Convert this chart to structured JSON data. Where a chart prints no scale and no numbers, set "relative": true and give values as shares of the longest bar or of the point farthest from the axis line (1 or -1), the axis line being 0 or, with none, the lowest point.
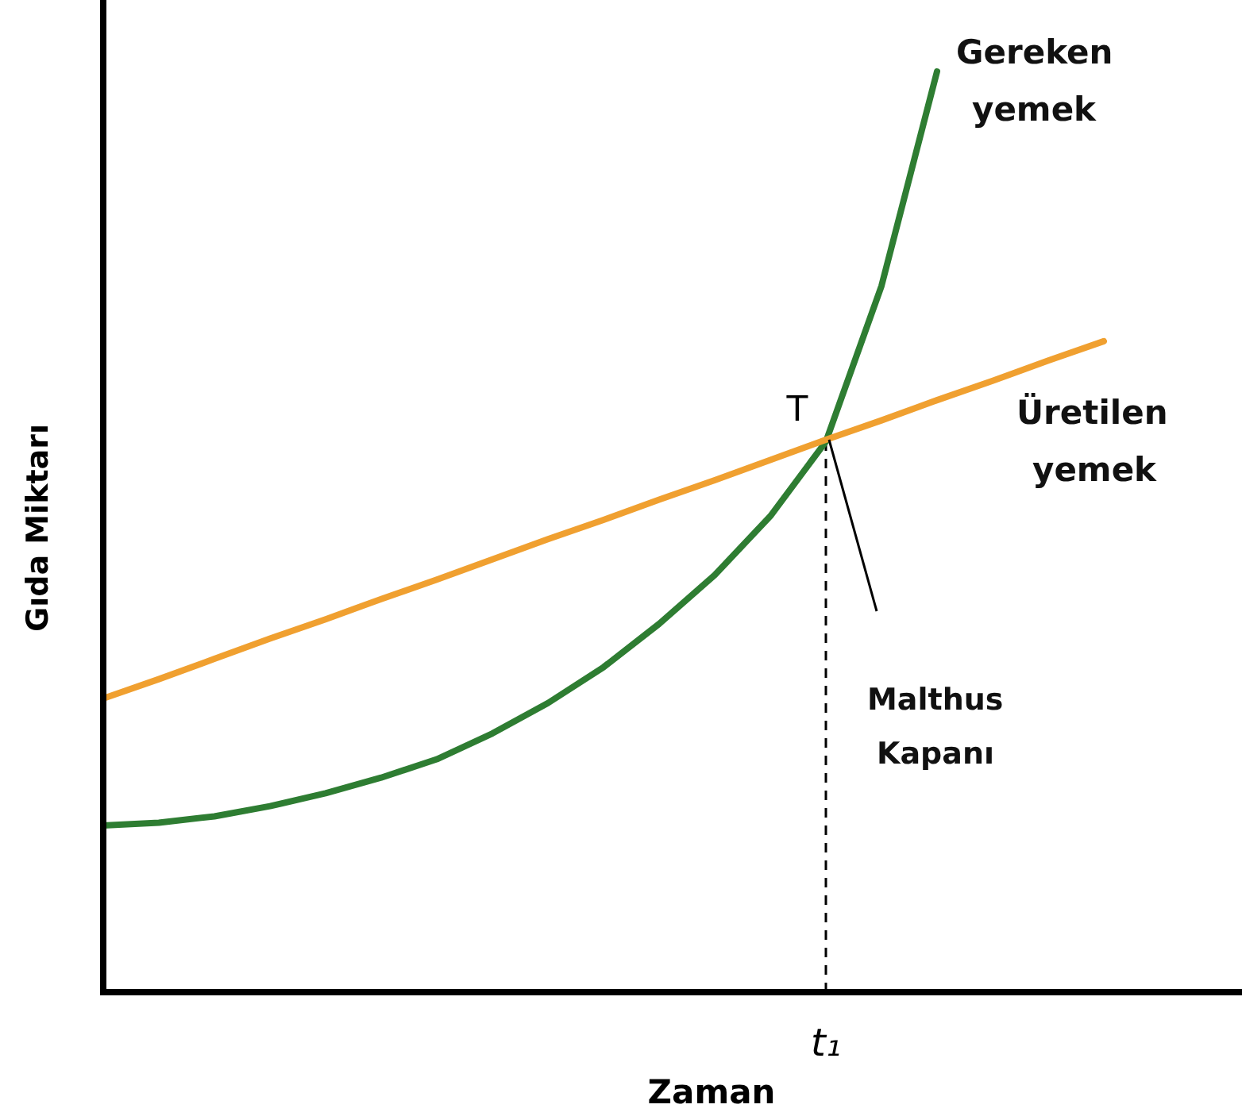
{
  "chart_data": {
    "type": "line",
    "relative": true,
    "xlabel": "Zaman",
    "ylabel": "Gıda Miktarı",
    "categories": [
      null,
      null,
      null,
      null,
      null,
      null,
      null,
      null,
      null,
      null,
      null,
      null,
      null,
      null,
      null,
      null,
      null,
      null,
      null,
      null,
      null
    ],
    "series": [
      {
        "name": "Gereken yemek",
        "color": "#2e7d32",
        "values": [
          0.181,
          0.184,
          0.191,
          0.202,
          0.216,
          0.233,
          0.253,
          0.281,
          0.314,
          0.353,
          0.4,
          0.453,
          0.517,
          0.598,
          0.767,
          1,
          null,
          null,
          null,
          null,
          null
        ]
      },
      {
        "name": "Üretilen yemek",
        "color": "#f0a030",
        "values": [
          0.319,
          0.34,
          0.362,
          0.384,
          0.405,
          0.427,
          0.448,
          0.47,
          0.492,
          0.513,
          0.535,
          0.556,
          0.578,
          0.6,
          0.621,
          0.643,
          0.664,
          0.686,
          0.707,
          null,
          null
        ]
      }
    ],
    "annotations": [
      "T",
      "t₁",
      "Malthus Kapanı"
    ],
    "legend": false,
    "marker": "none",
    "line_style": "solid"
  }
}
